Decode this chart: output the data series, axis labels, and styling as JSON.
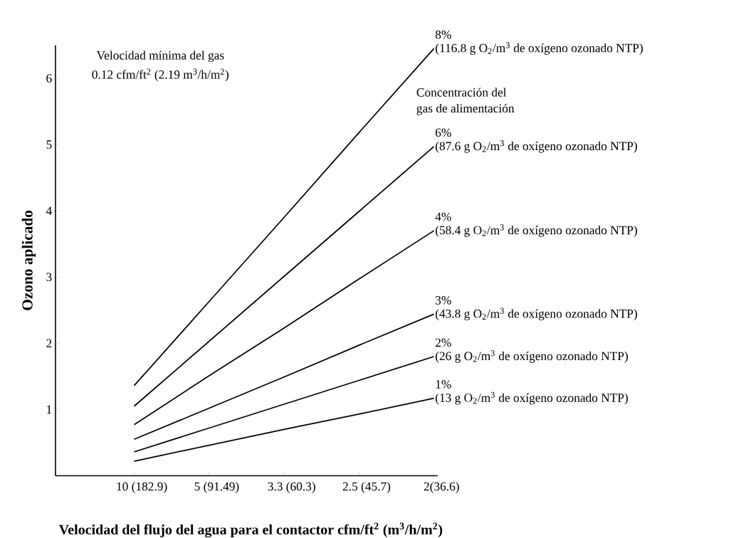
{
  "chart_data": {
    "type": "line",
    "xlabel": "Velocidad del flujo del agua para el contactor cfm/ft$^{2}$ (m$^{3}$/h/m$^{2}$)",
    "ylabel": "Ozono aplicado",
    "categories": [
      "10 (182.9)",
      "5 (91.49)",
      "3.3 (60.3)",
      "2.5 (45.7)",
      "2(36.6)"
    ],
    "ylim": [
      0,
      6.5
    ],
    "yticks": [
      1,
      2,
      3,
      4,
      5,
      6
    ],
    "marker": "none",
    "line_style": "solid",
    "grid": false,
    "legend": false,
    "series": [
      {
        "name": "8%",
        "color": "#000000",
        "values": [
          1.36,
          2.63,
          3.9,
          5.18,
          6.45
        ]
      },
      {
        "name": "6%",
        "color": "#000000",
        "values": [
          1.05,
          2.03,
          3.01,
          3.99,
          4.97
        ]
      },
      {
        "name": "4%",
        "color": "#000000",
        "values": [
          0.77,
          1.51,
          2.23,
          2.97,
          3.7
        ]
      },
      {
        "name": "3%",
        "color": "#000000",
        "values": [
          0.55,
          1.02,
          1.49,
          1.97,
          2.44
        ]
      },
      {
        "name": "2%",
        "color": "#000000",
        "values": [
          0.36,
          0.72,
          1.08,
          1.44,
          1.8
        ]
      },
      {
        "name": "1%",
        "color": "#000000",
        "values": [
          0.22,
          0.46,
          0.7,
          0.93,
          1.17
        ]
      }
    ],
    "annotations": [
      "Velocidad mínima del gas",
      "0.12 cfm/ft$^{2}$ (2.19 m$^{3}$/h/m$^{2}$)",
      "Concentración del",
      "gas de alimentación",
      "(116.8 g O$_{2}$/m$^{3}$ de oxígeno ozonado NTP)",
      "(87.6 g O$_{2}$/m$^{3}$ de oxígeno ozonado NTP)",
      "(58.4 g O$_{2}$/m$^{3}$ de oxígeno ozonado NTP)",
      "(43.8 g O$_{2}$/m$^{3}$ de oxígeno ozonado NTP)",
      "(26 g O$_{2}$/m$^{3}$ de oxígeno ozonado NTP)",
      "(13 g O$_{2}$/m$^{3}$ de oxígeno ozonado NTP)"
    ]
  }
}
